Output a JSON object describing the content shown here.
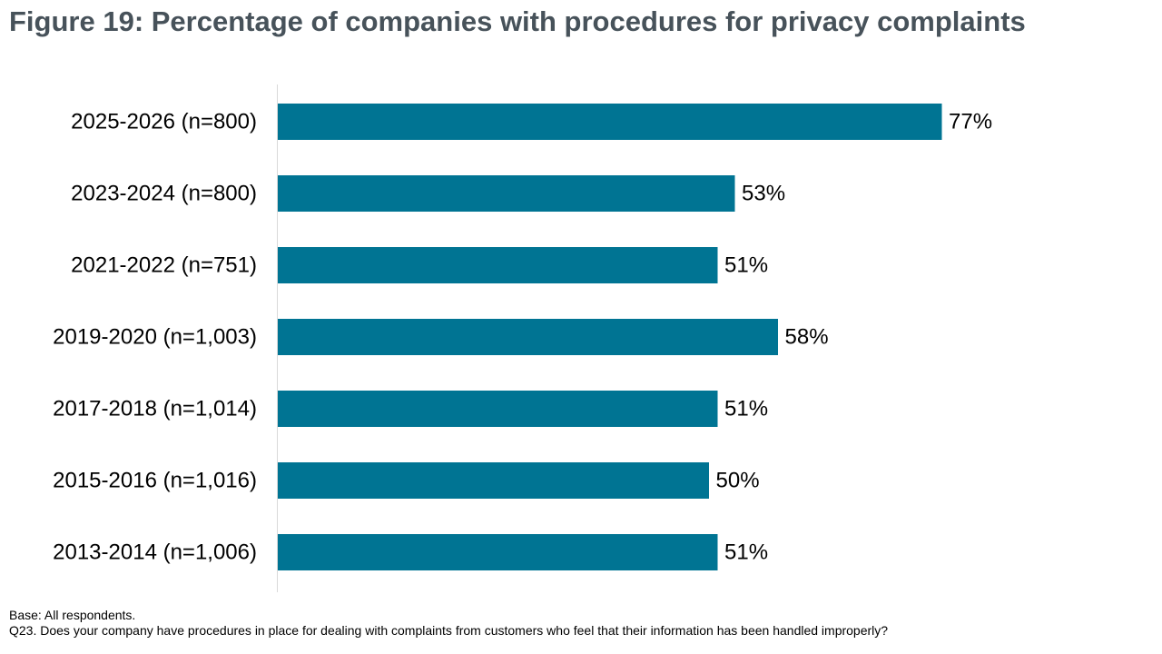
{
  "title": "Figure 19: Percentage of companies with procedures for privacy complaints",
  "colors": {
    "bar": "#007493",
    "title": "#47525a",
    "axis": "#d9d9d9",
    "text": "#000000"
  },
  "chart_data": {
    "type": "bar",
    "orientation": "horizontal",
    "categories": [
      "2025-2026 (n=800)",
      "2023-2024 (n=800)",
      "2021-2022 (n=751)",
      "2019-2020 (n=1,003)",
      "2017-2018 (n=1,014)",
      "2015-2016 (n=1,016)",
      "2013-2014 (n=1,006)"
    ],
    "values": [
      77,
      53,
      51,
      58,
      51,
      50,
      51
    ],
    "data_labels": [
      "77%",
      "53%",
      "51%",
      "58%",
      "51%",
      "50%",
      "51%"
    ],
    "unit": "%",
    "xlim": [
      0,
      100
    ],
    "grid": false,
    "legend": "none"
  },
  "footnotes": {
    "base": "Base: All respondents.",
    "question": "Q23. Does your company have procedures in place for dealing with complaints from customers who feel that their information has been handled improperly?"
  }
}
